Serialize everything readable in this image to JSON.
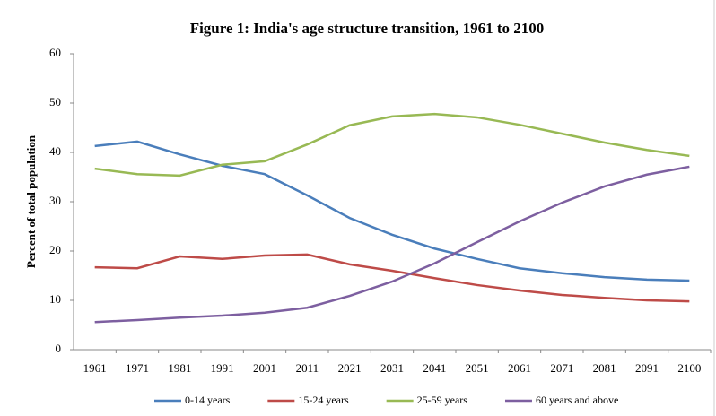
{
  "chart_data": {
    "type": "line",
    "title": "Figure 1: India's age structure transition, 1961 to 2100",
    "y_label": "Percent of total population",
    "categories": [
      "1961",
      "1971",
      "1981",
      "1991",
      "2001",
      "2011",
      "2021",
      "2031",
      "2041",
      "2051",
      "2061",
      "2071",
      "2081",
      "2091",
      "2100"
    ],
    "series": [
      {
        "name": "0-14 years",
        "color": "#4a7ebb",
        "values": [
          41.3,
          42.2,
          39.6,
          37.3,
          35.6,
          31.3,
          26.7,
          23.3,
          20.5,
          18.4,
          16.5,
          15.5,
          14.7,
          14.2,
          14.0
        ]
      },
      {
        "name": "15-24 years",
        "color": "#be4b48",
        "values": [
          16.7,
          16.5,
          18.9,
          18.4,
          19.1,
          19.3,
          17.3,
          16.0,
          14.5,
          13.1,
          12.0,
          11.1,
          10.5,
          10.0,
          9.8
        ]
      },
      {
        "name": "25-59 years",
        "color": "#98b954",
        "values": [
          36.7,
          35.6,
          35.3,
          37.5,
          38.2,
          41.6,
          45.5,
          47.3,
          47.8,
          47.1,
          45.6,
          43.8,
          42.0,
          40.5,
          39.3
        ]
      },
      {
        "name": "60 years and above",
        "color": "#7d5fa0",
        "values": [
          5.6,
          6.0,
          6.5,
          6.9,
          7.5,
          8.5,
          10.9,
          13.8,
          17.5,
          21.8,
          26.0,
          29.8,
          33.1,
          35.5,
          37.1
        ]
      }
    ],
    "ylim": [
      0,
      60
    ],
    "yticks": [
      0,
      10,
      20,
      30,
      40,
      50,
      60
    ],
    "grid": false,
    "legend": "bottom"
  }
}
